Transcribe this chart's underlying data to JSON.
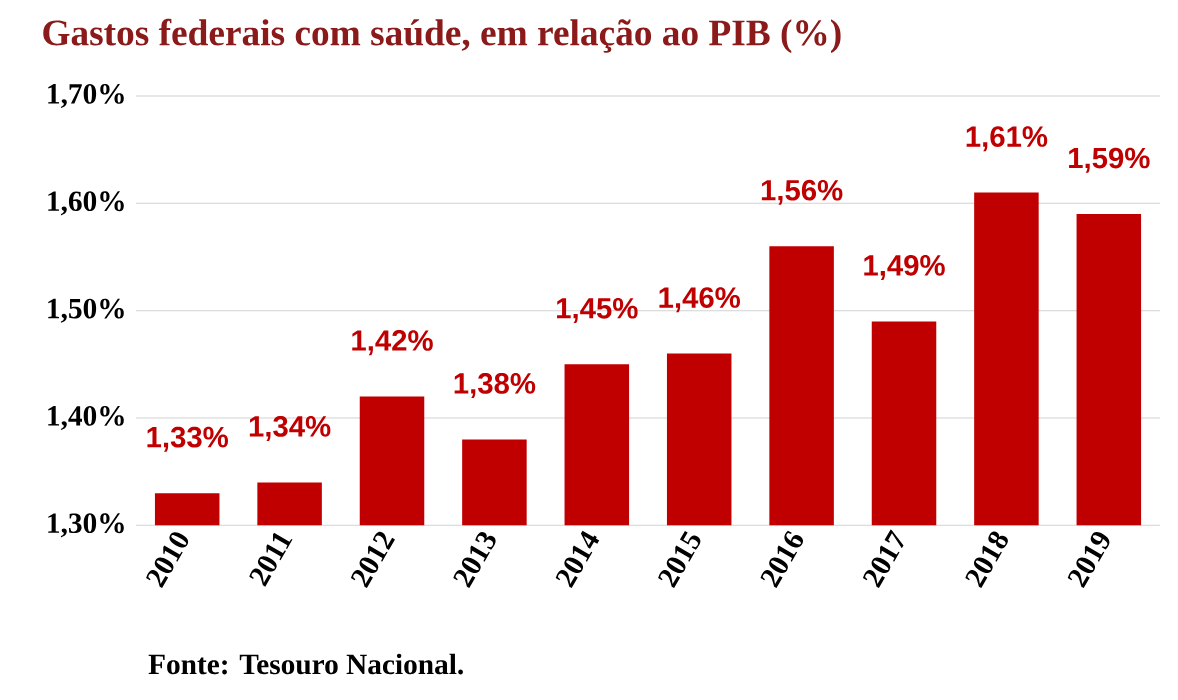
{
  "chart_data": {
    "type": "bar",
    "title": "Gastos federais com saúde, em relação ao PIB (%)",
    "categories": [
      "2010",
      "2011",
      "2012",
      "2013",
      "2014",
      "2015",
      "2016",
      "2017",
      "2018",
      "2019"
    ],
    "values": [
      1.33,
      1.34,
      1.42,
      1.38,
      1.45,
      1.46,
      1.56,
      1.49,
      1.61,
      1.59
    ],
    "value_labels": [
      "1,33%",
      "1,34%",
      "1,42%",
      "1,38%",
      "1,45%",
      "1,46%",
      "1,56%",
      "1,49%",
      "1,61%",
      "1,59%"
    ],
    "color": "#c00000",
    "ylim": [
      1.3,
      1.7
    ],
    "yticks": [
      {
        "value": 1.3,
        "label": "1,30%"
      },
      {
        "value": 1.4,
        "label": "1,40%"
      },
      {
        "value": 1.5,
        "label": "1,50%"
      },
      {
        "value": 1.6,
        "label": "1,60%"
      },
      {
        "value": 1.7,
        "label": "1,70%"
      }
    ],
    "grid": "y",
    "annotations": [
      "Fonte: Tesouro Nacional."
    ]
  }
}
